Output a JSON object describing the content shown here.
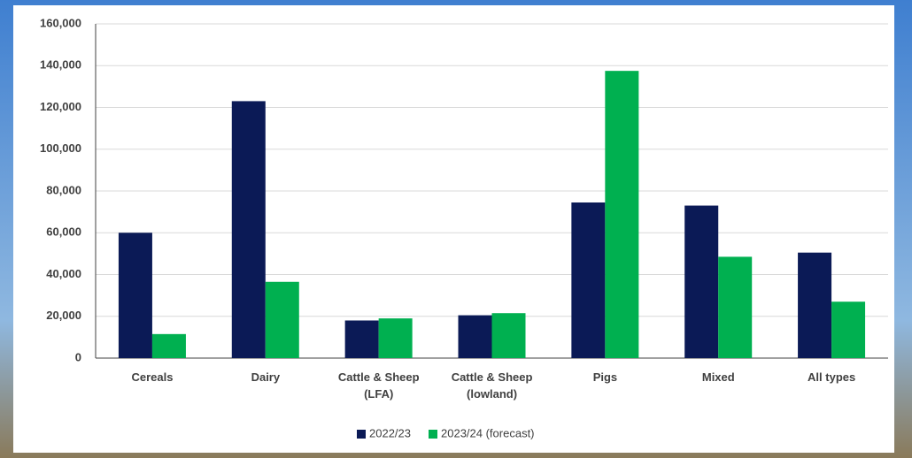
{
  "chart_data": {
    "type": "bar",
    "categories": [
      "Cereals",
      "Dairy",
      "Cattle & Sheep\n(LFA)",
      "Cattle & Sheep\n(lowland)",
      "Pigs",
      "Mixed",
      "All types"
    ],
    "series": [
      {
        "name": "2022/23",
        "color": "#0b1a56",
        "values": [
          60000,
          123000,
          18000,
          20500,
          74500,
          73000,
          50500
        ]
      },
      {
        "name": "2023/24 (forecast)",
        "color": "#00b050",
        "values": [
          11500,
          36500,
          19000,
          21500,
          137500,
          48500,
          27000
        ]
      }
    ],
    "ylim": [
      0,
      160000
    ],
    "yticks": [
      0,
      {
        "value": 20000,
        "label": "20,000"
      },
      {
        "value": 40000,
        "label": "40,000"
      },
      {
        "value": 60000,
        "label": "60,000"
      },
      {
        "value": 80000,
        "label": "80,000"
      },
      {
        "value": 100000,
        "label": "100,000"
      },
      {
        "value": 120000,
        "label": "120,000"
      },
      {
        "value": 140000,
        "label": "140,000"
      },
      {
        "value": 160000,
        "label": "160,000"
      }
    ],
    "grid": true,
    "legend": "bottom"
  }
}
